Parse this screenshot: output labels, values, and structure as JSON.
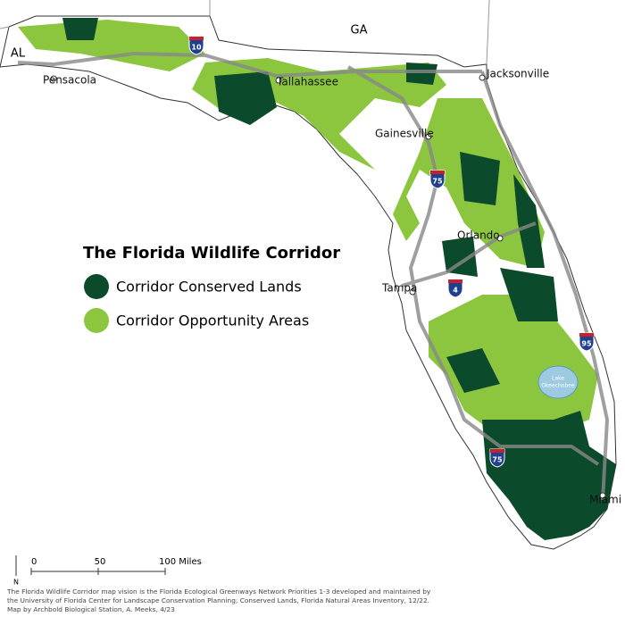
{
  "title": "The Florida Wildlife Corridor",
  "legend": [
    {
      "label": "Corridor Conserved Lands",
      "color": "#0b4a2b"
    },
    {
      "label": "Corridor Opportunity Areas",
      "color": "#8cc63f"
    }
  ],
  "states": [
    "AL",
    "GA"
  ],
  "cities": [
    "Pensacola",
    "Tallahassee",
    "Jacksonville",
    "Gainesville",
    "Orlando",
    "Tampa",
    "Miami"
  ],
  "highways": [
    "10",
    "75",
    "4",
    "95",
    "75"
  ],
  "lake": [
    "Lake",
    "Okeechobee"
  ],
  "north": "N",
  "scale_bar": [
    "0",
    "50",
    "100 Miles"
  ],
  "footnote": [
    "The Florida Wildlife Corridor map vision is the Florida Ecological Greenways Network Priorities 1-3 developed and maintained by",
    "the University of Florida Center for Landscape Conservation Planning; Conserved Lands, Florida Natural Areas Inventory, 12/22.",
    "Map by Archbold Biological Station, A. Meeks, 4/23"
  ]
}
